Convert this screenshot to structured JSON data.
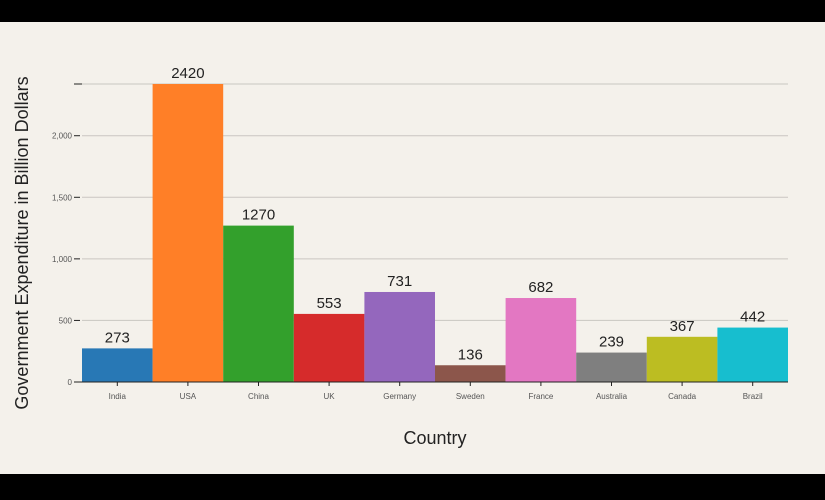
{
  "chart_data": {
    "type": "bar",
    "title": "",
    "xlabel": "Country",
    "ylabel": "Government Expenditure in Billion Dollars",
    "categories": [
      "India",
      "USA",
      "China",
      "UK",
      "Germany",
      "Sweden",
      "France",
      "Australia",
      "Canada",
      "Brazil"
    ],
    "values": [
      273,
      2420,
      1270,
      553,
      731,
      136,
      682,
      239,
      367,
      442
    ],
    "data_labels": [
      "273",
      "2420",
      "1270",
      "553",
      "731",
      "136",
      "682",
      "239",
      "367",
      "442"
    ],
    "colors": [
      "#2878b5",
      "#ff7f27",
      "#33a02c",
      "#d62b2b",
      "#9467bd",
      "#8c564b",
      "#e377c2",
      "#7f7f7f",
      "#bcbd22",
      "#17becf"
    ],
    "ylim": [
      0,
      2420
    ],
    "yticks": [
      0,
      500,
      1000,
      1500,
      2000
    ],
    "ytick_labels": [
      "0",
      "500",
      "1,000",
      "1,500",
      "2,000"
    ],
    "grid": true,
    "legend": "none"
  }
}
